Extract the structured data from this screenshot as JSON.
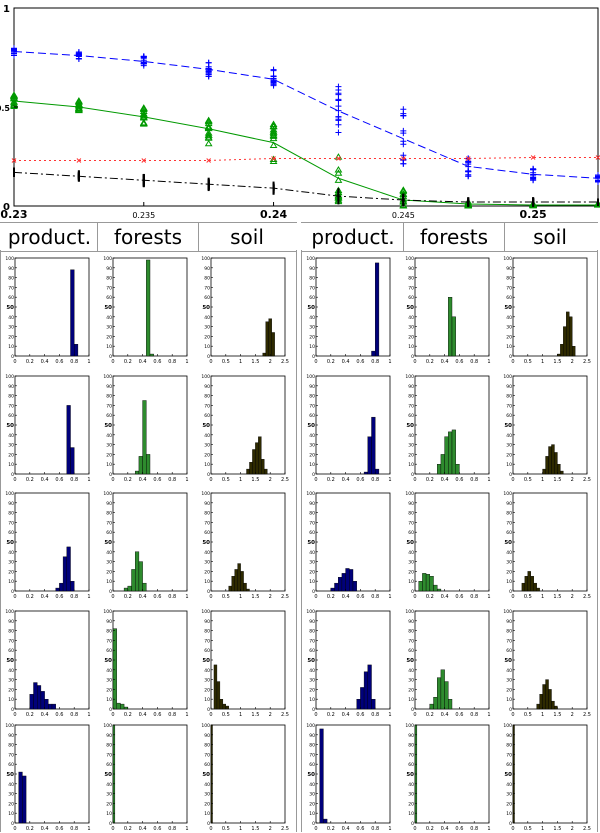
{
  "colors": {
    "productivity": "#00007a",
    "forests": "#2e8b2e",
    "soil": "#2e2a00",
    "top_blue": "#0000ff",
    "top_green": "#009900",
    "top_red": "#ff3333",
    "top_black": "#000000"
  },
  "tabs": {
    "left": [
      "product.",
      "forests",
      "soil"
    ],
    "right": [
      "product.",
      "forests",
      "soil"
    ]
  },
  "chart_data": [
    {
      "type": "scatter",
      "x_ticks": [
        "0.23",
        "0.235",
        "0.24",
        "0.245",
        "0.25"
      ],
      "y_ticks": [
        "0",
        "0.5",
        "1"
      ],
      "xlim": [
        0.23,
        0.2525
      ],
      "ylim": [
        0,
        1
      ],
      "grid": false,
      "series": [
        {
          "color": "blue",
          "marker": "+",
          "line": "dashed",
          "x": [
            0.23,
            0.2325,
            0.235,
            0.2375,
            0.24,
            0.2425,
            0.245,
            0.2475,
            0.25,
            0.2525
          ],
          "y": [
            0.78,
            0.76,
            0.73,
            0.69,
            0.64,
            0.48,
            0.34,
            0.2,
            0.16,
            0.14
          ],
          "spread": [
            0.02,
            0.02,
            0.03,
            0.04,
            0.06,
            0.14,
            0.15,
            0.05,
            0.03,
            0.02
          ]
        },
        {
          "color": "green",
          "marker": "triangle",
          "line": "solid",
          "x": [
            0.23,
            0.2325,
            0.235,
            0.2375,
            0.24,
            0.2425,
            0.245,
            0.2475,
            0.25,
            0.2525
          ],
          "y": [
            0.53,
            0.5,
            0.45,
            0.39,
            0.32,
            0.14,
            0.03,
            0.01,
            0.005,
            0.005
          ],
          "spread": [
            0.03,
            0.03,
            0.05,
            0.08,
            0.1,
            0.12,
            0.05,
            0.01,
            0.005,
            0.005
          ]
        },
        {
          "color": "red",
          "marker": "x",
          "line": "dotted",
          "x": [
            0.23,
            0.2325,
            0.235,
            0.2375,
            0.24,
            0.2425,
            0.245,
            0.2475,
            0.25,
            0.2525
          ],
          "y": [
            0.23,
            0.23,
            0.23,
            0.23,
            0.24,
            0.24,
            0.24,
            0.24,
            0.245,
            0.245
          ],
          "spread": [
            0,
            0,
            0,
            0,
            0,
            0,
            0,
            0,
            0,
            0
          ]
        },
        {
          "color": "black",
          "marker": "|",
          "line": "dashdot",
          "x": [
            0.23,
            0.2325,
            0.235,
            0.2375,
            0.24,
            0.2425,
            0.245,
            0.2475,
            0.25,
            0.2525
          ],
          "y": [
            0.17,
            0.15,
            0.13,
            0.11,
            0.09,
            0.05,
            0.03,
            0.02,
            0.02,
            0.02
          ],
          "spread": [
            0.01,
            0.02,
            0.02,
            0.02,
            0.02,
            0.03,
            0.02,
            0.01,
            0.01,
            0.005
          ]
        }
      ]
    },
    {
      "type": "bar",
      "layout": "5 rows x 6 histograms",
      "ylim": [
        0,
        100
      ],
      "y_ticks": [
        "0",
        "10",
        "20",
        "30",
        "40",
        "50",
        "60",
        "70",
        "80",
        "90",
        "100"
      ],
      "axes": {
        "product": {
          "xlim": [
            0,
            1
          ],
          "x_ticks": [
            "0",
            "0.2",
            "0.4",
            "0.6",
            "0.8",
            "1"
          ]
        },
        "forests": {
          "xlim": [
            0,
            1
          ],
          "x_ticks": [
            "0",
            "0.2",
            "0.4",
            "0.6",
            "0.8",
            "1"
          ]
        },
        "soil": {
          "xlim": [
            0,
            2.5
          ],
          "x_ticks": [
            "0",
            "0.5",
            "1",
            "1.5",
            "2",
            "2.5"
          ]
        }
      },
      "panels": [
        [
          {
            "kind": "product",
            "start": 0.75,
            "width": 0.05,
            "values": [
              88,
              12
            ]
          },
          {
            "kind": "forests",
            "start": 0.45,
            "width": 0.05,
            "values": [
              98,
              2
            ]
          },
          {
            "kind": "soil",
            "start": 1.75,
            "width": 0.1,
            "values": [
              3,
              35,
              38,
              24
            ]
          },
          {
            "kind": "product",
            "start": 0.75,
            "width": 0.05,
            "values": [
              5,
              95
            ]
          },
          {
            "kind": "forests",
            "start": 0.45,
            "width": 0.05,
            "values": [
              60,
              40
            ]
          },
          {
            "kind": "soil",
            "start": 1.5,
            "width": 0.1,
            "values": [
              2,
              12,
              30,
              45,
              40,
              10
            ]
          }
        ],
        [
          {
            "kind": "product",
            "start": 0.7,
            "width": 0.05,
            "values": [
              70,
              27
            ]
          },
          {
            "kind": "forests",
            "start": 0.3,
            "width": 0.05,
            "values": [
              3,
              18,
              75,
              20
            ]
          },
          {
            "kind": "soil",
            "start": 1.2,
            "width": 0.1,
            "values": [
              5,
              12,
              25,
              32,
              38,
              15,
              5
            ]
          },
          {
            "kind": "product",
            "start": 0.65,
            "width": 0.05,
            "values": [
              2,
              38,
              58,
              5
            ]
          },
          {
            "kind": "forests",
            "start": 0.3,
            "width": 0.05,
            "values": [
              10,
              20,
              38,
              43,
              45,
              10
            ]
          },
          {
            "kind": "soil",
            "start": 1.0,
            "width": 0.1,
            "values": [
              5,
              18,
              28,
              30,
              22,
              10,
              3
            ]
          }
        ],
        [
          {
            "kind": "product",
            "start": 0.55,
            "width": 0.05,
            "values": [
              3,
              8,
              35,
              45,
              10
            ]
          },
          {
            "kind": "forests",
            "start": 0.15,
            "width": 0.05,
            "values": [
              3,
              5,
              22,
              40,
              30,
              8
            ]
          },
          {
            "kind": "soil",
            "start": 0.6,
            "width": 0.1,
            "values": [
              5,
              15,
              22,
              28,
              20,
              8,
              2
            ]
          },
          {
            "kind": "product",
            "start": 0.2,
            "width": 0.05,
            "values": [
              3,
              8,
              14,
              18,
              23,
              22,
              10
            ]
          },
          {
            "kind": "forests",
            "start": 0.05,
            "width": 0.05,
            "values": [
              10,
              18,
              17,
              15,
              6,
              2
            ]
          },
          {
            "kind": "soil",
            "start": 0.3,
            "width": 0.1,
            "values": [
              8,
              15,
              20,
              15,
              8,
              3
            ]
          }
        ],
        [
          {
            "kind": "product",
            "start": 0.2,
            "width": 0.05,
            "values": [
              15,
              27,
              24,
              18,
              10,
              5,
              5
            ]
          },
          {
            "kind": "forests",
            "start": 0.0,
            "width": 0.05,
            "values": [
              82,
              6,
              5,
              2
            ]
          },
          {
            "kind": "soil",
            "start": 0.1,
            "width": 0.1,
            "values": [
              45,
              28,
              10,
              5,
              3
            ]
          },
          {
            "kind": "product",
            "start": 0.55,
            "width": 0.05,
            "values": [
              10,
              22,
              38,
              45,
              10
            ]
          },
          {
            "kind": "forests",
            "start": 0.2,
            "width": 0.05,
            "values": [
              5,
              12,
              32,
              40,
              28,
              10
            ]
          },
          {
            "kind": "soil",
            "start": 0.8,
            "width": 0.1,
            "values": [
              5,
              15,
              25,
              30,
              20,
              8,
              3
            ]
          }
        ],
        [
          {
            "kind": "product",
            "start": 0.05,
            "width": 0.05,
            "values": [
              52,
              48
            ]
          },
          {
            "kind": "forests",
            "start": 0.0,
            "width": 0.025,
            "values": [
              100
            ]
          },
          {
            "kind": "soil",
            "start": 0.0,
            "width": 0.05,
            "values": [
              100
            ]
          },
          {
            "kind": "product",
            "start": 0.05,
            "width": 0.05,
            "values": [
              96,
              4
            ]
          },
          {
            "kind": "forests",
            "start": 0.0,
            "width": 0.025,
            "values": [
              100
            ]
          },
          {
            "kind": "soil",
            "start": 0.0,
            "width": 0.05,
            "values": [
              100
            ]
          }
        ]
      ]
    }
  ]
}
